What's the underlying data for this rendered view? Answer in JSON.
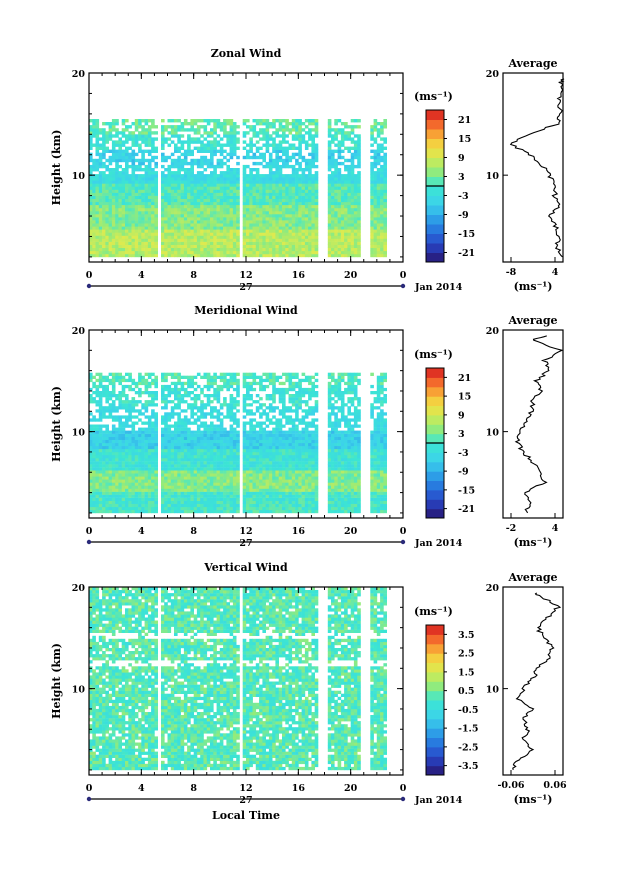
{
  "chart_data": [
    {
      "type": "heatmap",
      "title": "Zonal Wind",
      "xlabel": "",
      "ylabel": "Height (km)",
      "xlim": [
        0,
        24
      ],
      "ylim": [
        1.5,
        20
      ],
      "x_ticks": [
        "0",
        "4",
        "8",
        "12",
        "16",
        "20",
        "0"
      ],
      "y_ticks": [
        "10",
        "20"
      ],
      "date_label": "27",
      "date_suffix": "Jan 2014",
      "colorbar": {
        "unit": "(ms⁻¹)",
        "ticks": [
          "21",
          "15",
          "9",
          "3",
          "-3",
          "-9",
          "-15",
          "-21"
        ],
        "range": [
          -24,
          24
        ]
      },
      "gaps": [
        [
          5.2,
          5.6
        ],
        [
          11.4,
          11.7
        ],
        [
          17.6,
          18.2
        ],
        [
          20.7,
          21.6
        ],
        [
          22.7,
          24
        ]
      ],
      "bands": [
        {
          "y": [
            2,
            4.5
          ],
          "value": 7
        },
        {
          "y": [
            4.5,
            7
          ],
          "value": 4
        },
        {
          "y": [
            7,
            9
          ],
          "value": 1
        },
        {
          "y": [
            9,
            10.8
          ],
          "value": -3
        },
        {
          "y": [
            10.8,
            12.5
          ],
          "value": -5
        },
        {
          "y": [
            12.5,
            14
          ],
          "value": -1
        },
        {
          "y": [
            14,
            15.5
          ],
          "value": 2
        }
      ],
      "average": {
        "title": "Average",
        "xlabel": "(ms⁻¹)",
        "x_ticks": [
          "-8",
          "4"
        ],
        "xlim": [
          -8,
          4
        ],
        "y_ticks": [
          "10",
          "20"
        ],
        "height": [
          2,
          3,
          4,
          5,
          6,
          7,
          8,
          9,
          10,
          11,
          12,
          13,
          14,
          15,
          16,
          17,
          18,
          19,
          19.5
        ],
        "values": [
          3.5,
          2.8,
          3.2,
          2.5,
          1.5,
          3.3,
          2.3,
          2.7,
          1.3,
          -0.2,
          -2.5,
          -6.5,
          -3,
          2.8,
          3.5,
          3.2,
          3.6,
          3.5,
          4
        ]
      }
    },
    {
      "type": "heatmap",
      "title": "Meridional Wind",
      "xlabel": "",
      "ylabel": "Height (km)",
      "xlim": [
        0,
        24
      ],
      "ylim": [
        1.5,
        20
      ],
      "x_ticks": [
        "0",
        "4",
        "8",
        "12",
        "16",
        "20",
        "0"
      ],
      "y_ticks": [
        "10",
        "20"
      ],
      "date_label": "27",
      "date_suffix": "Jan 2014",
      "colorbar": {
        "unit": "(ms⁻¹)",
        "ticks": [
          "21",
          "15",
          "9",
          "3",
          "-3",
          "-9",
          "-15",
          "-21"
        ],
        "range": [
          -24,
          24
        ]
      },
      "gaps": [
        [
          5.2,
          5.6
        ],
        [
          11.4,
          11.7
        ],
        [
          17.6,
          18.2
        ],
        [
          20.7,
          21.6
        ],
        [
          22.7,
          24
        ]
      ],
      "bands": [
        {
          "y": [
            2,
            4
          ],
          "value": 0
        },
        {
          "y": [
            4,
            6
          ],
          "value": 4
        },
        {
          "y": [
            6,
            8
          ],
          "value": -1
        },
        {
          "y": [
            8,
            10
          ],
          "value": -5
        },
        {
          "y": [
            10,
            12.5
          ],
          "value": -3
        },
        {
          "y": [
            12.5,
            14.5
          ],
          "value": -1
        },
        {
          "y": [
            14.5,
            15.8
          ],
          "value": 1
        }
      ],
      "average": {
        "title": "Average",
        "xlabel": "(ms⁻¹)",
        "x_ticks": [
          "-2",
          "4"
        ],
        "xlim": [
          -2,
          4
        ],
        "y_ticks": [
          "10",
          "20"
        ],
        "height": [
          2,
          3,
          4,
          5,
          6,
          7,
          8,
          9,
          10,
          11,
          12,
          13,
          14,
          15,
          16,
          17,
          18,
          19,
          19.5
        ],
        "values": [
          0.3,
          0.6,
          0.1,
          2.2,
          1.6,
          1.0,
          0.0,
          -0.6,
          -0.3,
          0.2,
          0.8,
          1.0,
          1.8,
          1.3,
          2.6,
          2.2,
          3.8,
          1.0,
          2.5
        ]
      }
    },
    {
      "type": "heatmap",
      "title": "Vertical Wind",
      "xlabel": "Local Time",
      "ylabel": "Height (km)",
      "xlim": [
        0,
        24
      ],
      "ylim": [
        1.5,
        20
      ],
      "x_ticks": [
        "0",
        "4",
        "8",
        "12",
        "16",
        "20",
        "0"
      ],
      "y_ticks": [
        "10",
        "20"
      ],
      "date_label": "27",
      "date_suffix": "Jan 2014",
      "colorbar": {
        "unit": "(ms⁻¹)",
        "ticks": [
          "3.5",
          "2.5",
          "1.5",
          "0.5",
          "-0.5",
          "-1.5",
          "-2.5",
          "-3.5"
        ],
        "range": [
          -4,
          4
        ]
      },
      "gaps": [
        [
          5.2,
          5.6
        ],
        [
          11.4,
          11.7
        ],
        [
          17.6,
          18.2
        ],
        [
          20.7,
          21.6
        ],
        [
          22.7,
          24
        ]
      ],
      "bands": [
        {
          "y": [
            2,
            20
          ],
          "value": 0.2
        }
      ],
      "average": {
        "title": "Average",
        "xlabel": "(ms⁻¹)",
        "x_ticks": [
          "-0.06",
          "0.06"
        ],
        "xlim": [
          -0.06,
          0.06
        ],
        "y_ticks": [
          "10",
          "20"
        ],
        "height": [
          2,
          3,
          4,
          5,
          6,
          7,
          8,
          9,
          10,
          11,
          12,
          13,
          14,
          15,
          16,
          17,
          18,
          19,
          19.5
        ],
        "values": [
          -0.04,
          -0.03,
          0.0,
          -0.02,
          -0.01,
          -0.02,
          0.0,
          -0.03,
          -0.02,
          0.0,
          0.01,
          0.03,
          0.04,
          0.02,
          0.01,
          0.03,
          0.05,
          0.02,
          0.0
        ]
      }
    }
  ]
}
